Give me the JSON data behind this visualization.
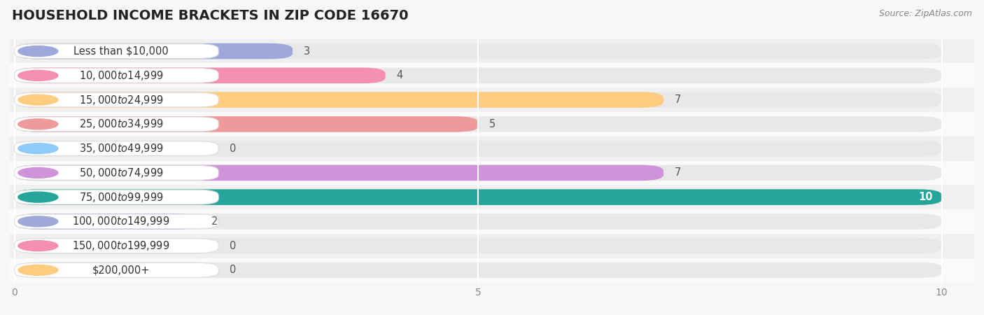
{
  "title": "HOUSEHOLD INCOME BRACKETS IN ZIP CODE 16670",
  "source": "Source: ZipAtlas.com",
  "categories": [
    "Less than $10,000",
    "$10,000 to $14,999",
    "$15,000 to $24,999",
    "$25,000 to $34,999",
    "$35,000 to $49,999",
    "$50,000 to $74,999",
    "$75,000 to $99,999",
    "$100,000 to $149,999",
    "$150,000 to $199,999",
    "$200,000+"
  ],
  "values": [
    3,
    4,
    7,
    5,
    0,
    7,
    10,
    2,
    0,
    0
  ],
  "bar_colors": [
    "#9fa8da",
    "#f48fb1",
    "#ffcc80",
    "#ef9a9a",
    "#90caf9",
    "#ce93d8",
    "#26a69a",
    "#9fa8da",
    "#f48fb1",
    "#ffcc80"
  ],
  "bar_bg_color": "#e8e8e8",
  "label_box_color": "#ffffff",
  "xlim_max": 10,
  "background_color": "#f7f7f7",
  "row_bg_even": "#f0f0f0",
  "row_bg_odd": "#fafafa",
  "title_fontsize": 14,
  "label_fontsize": 10.5,
  "value_fontsize": 10.5,
  "source_fontsize": 9
}
